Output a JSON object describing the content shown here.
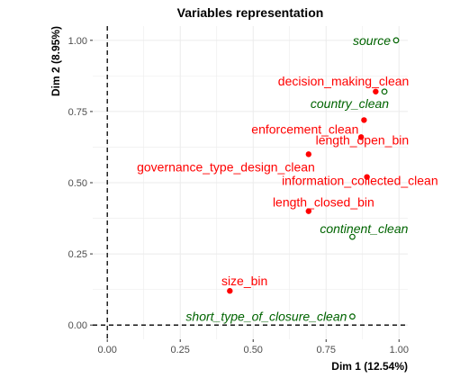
{
  "chart_data": {
    "type": "scatter",
    "title": "Variables representation",
    "xlabel": "Dim 1 (12.54%)",
    "ylabel": "Dim 2 (8.95%)",
    "xlim": [
      -0.05,
      1.03
    ],
    "ylim": [
      -0.05,
      1.05
    ],
    "xticks": [
      0.0,
      0.25,
      0.5,
      0.75,
      1.0
    ],
    "xtick_labels": [
      "0.00",
      "0.25",
      "0.50",
      "0.75",
      "1.00"
    ],
    "yticks": [
      0.0,
      0.25,
      0.5,
      0.75,
      1.0
    ],
    "ytick_labels": [
      "0.00",
      "0.25",
      "0.50",
      "0.75",
      "1.00"
    ],
    "grid": true,
    "reference_lines": {
      "x": 0,
      "y": 0
    },
    "colors": {
      "active": "#ff0000",
      "supplementary": "#006400"
    },
    "points": [
      {
        "label": "source",
        "x": 0.99,
        "y": 1.0,
        "group": "supplementary"
      },
      {
        "label": "decision_making_clean",
        "x": 0.92,
        "y": 0.82,
        "group": "active"
      },
      {
        "label": "country_clean",
        "x": 0.95,
        "y": 0.82,
        "group": "supplementary"
      },
      {
        "label": "enforcement_clean",
        "x": 0.88,
        "y": 0.72,
        "group": "active"
      },
      {
        "label": "length_open_bin",
        "x": 0.87,
        "y": 0.66,
        "group": "active"
      },
      {
        "label": "governance_type_design_clean",
        "x": 0.69,
        "y": 0.6,
        "group": "active"
      },
      {
        "label": "information_collected_clean",
        "x": 0.89,
        "y": 0.52,
        "group": "active"
      },
      {
        "label": "length_closed_bin",
        "x": 0.69,
        "y": 0.4,
        "group": "active"
      },
      {
        "label": "continent_clean",
        "x": 0.84,
        "y": 0.31,
        "group": "supplementary"
      },
      {
        "label": "size_bin",
        "x": 0.42,
        "y": 0.12,
        "group": "active"
      },
      {
        "label": "short_type_of_closure_clean",
        "x": 0.84,
        "y": 0.03,
        "group": "supplementary"
      }
    ]
  }
}
